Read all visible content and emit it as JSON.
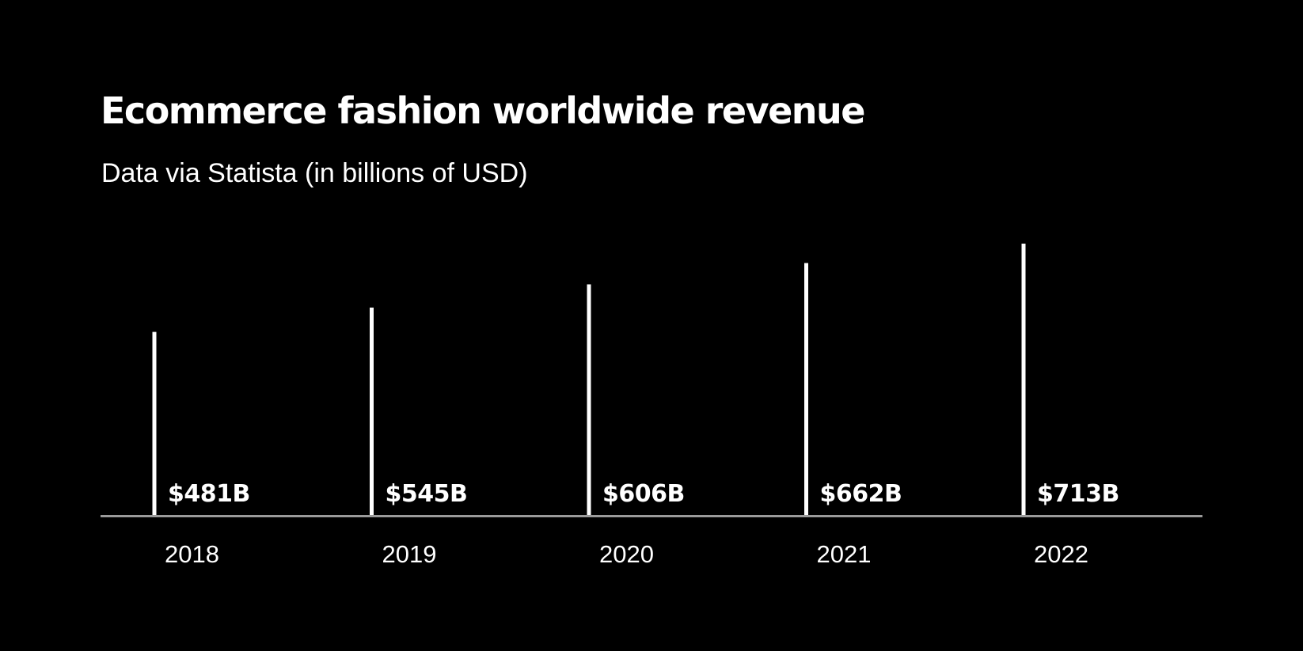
{
  "header": {
    "title": "Ecommerce fashion worldwide revenue",
    "subtitle": "Data via Statista (in billions of USD)"
  },
  "colors": {
    "background": "#000000",
    "bars": "#ffffff",
    "baseline": "#9a9a9a",
    "text": "#ffffff"
  },
  "chart_data": {
    "type": "bar",
    "title": "Ecommerce fashion worldwide revenue",
    "subtitle": "Data via Statista (in billions of USD)",
    "categories": [
      "2018",
      "2019",
      "2020",
      "2021",
      "2022"
    ],
    "values": [
      481,
      545,
      606,
      662,
      713
    ],
    "data_labels": [
      "$481B",
      "$545B",
      "$606B",
      "$662B",
      "$713B"
    ],
    "ylim": [
      0,
      713
    ],
    "grid": false,
    "legend": "none"
  }
}
